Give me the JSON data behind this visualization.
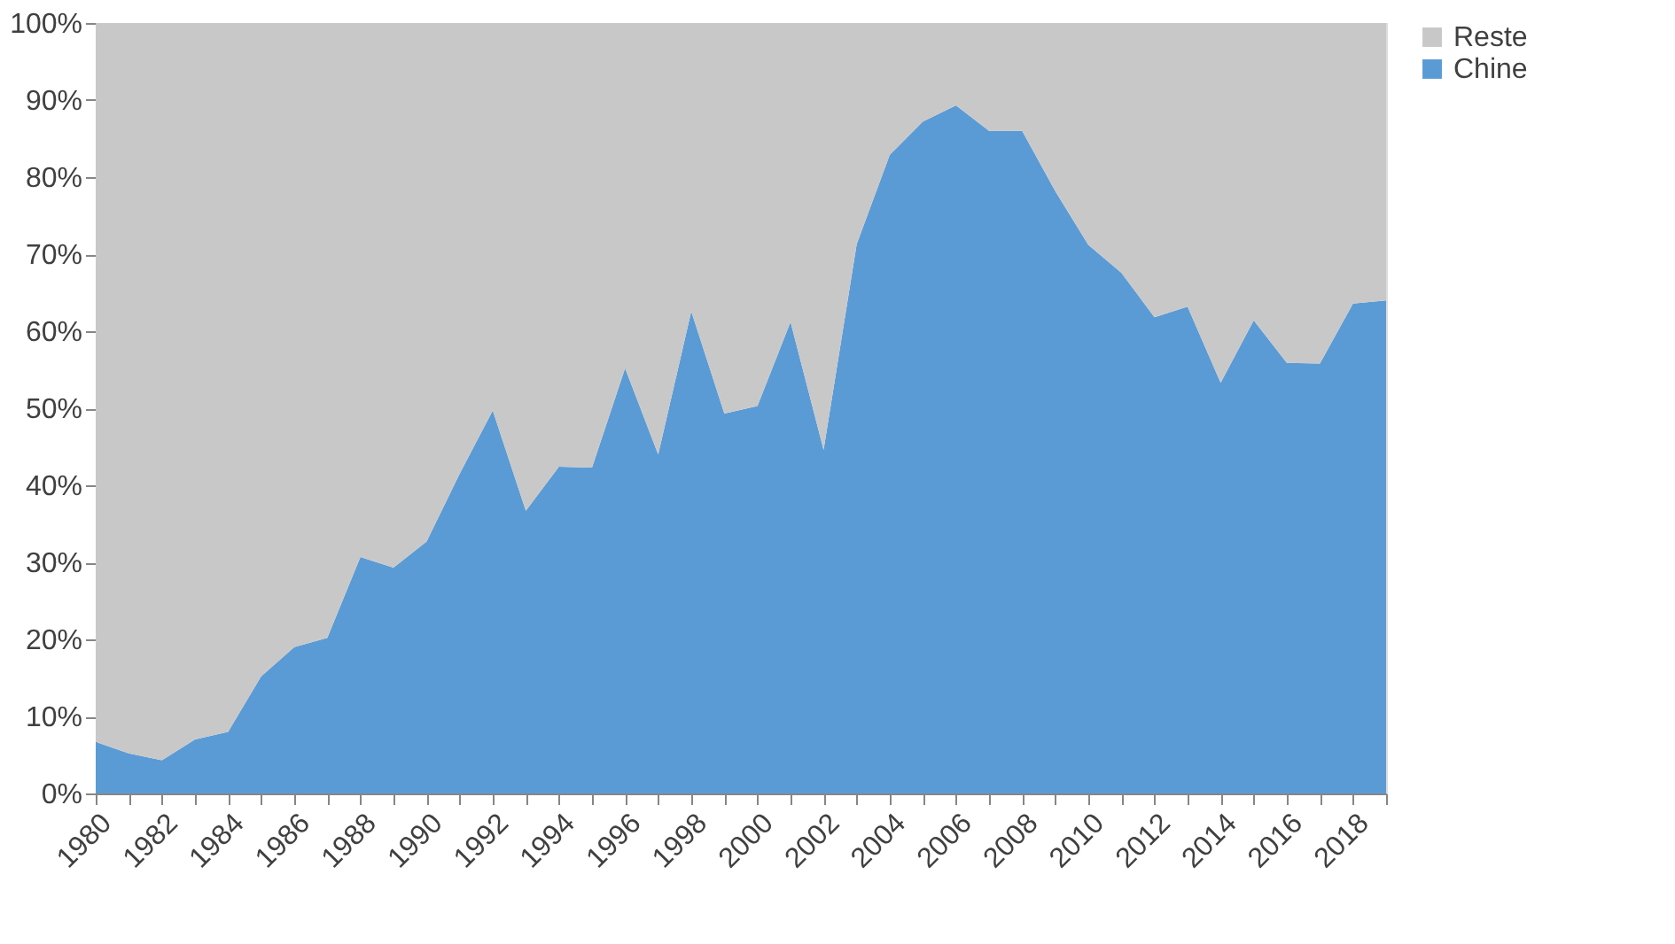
{
  "chart_data": {
    "type": "area",
    "stacked": true,
    "categories": [
      "1980",
      null,
      "1982",
      null,
      "1984",
      null,
      "1986",
      null,
      "1988",
      null,
      "1990",
      null,
      "1992",
      null,
      "1994",
      null,
      "1996",
      null,
      "1998",
      null,
      "2000",
      null,
      "2002",
      null,
      "2004",
      null,
      "2006",
      null,
      "2008",
      null,
      "2010",
      null,
      "2012",
      null,
      "2014",
      null,
      "2016",
      null,
      "2018",
      null
    ],
    "series": [
      {
        "name": "Chine",
        "color": "#5b9bd5",
        "values": [
          6.7,
          5.2,
          4.3,
          7,
          8,
          15.2,
          19,
          20.2,
          30.7,
          29.3,
          32.7,
          41.5,
          49.7,
          36.7,
          42.4,
          42.3,
          55.2,
          44,
          62.6,
          49.3,
          50.3,
          61.2,
          44.6,
          71.3,
          82.9,
          87.2,
          89.3,
          86,
          86,
          78.2,
          71.2,
          67.6,
          61.8,
          63.2,
          53.3,
          61.4,
          55.9,
          55.8,
          63.6,
          64
        ]
      },
      {
        "name": "Reste",
        "color": "#c8c8c8",
        "values": [
          93.3,
          94.8,
          95.7,
          93,
          92,
          84.8,
          81,
          79.8,
          69.3,
          70.7,
          67.3,
          58.5,
          50.3,
          63.3,
          57.6,
          57.7,
          44.8,
          56,
          37.4,
          50.7,
          49.7,
          38.8,
          55.4,
          28.7,
          17.1,
          12.8,
          10.7,
          14,
          14,
          21.8,
          28.8,
          32.4,
          38.2,
          36.8,
          46.7,
          38.6,
          44.1,
          44.2,
          36.4,
          36
        ]
      }
    ],
    "ylim": [
      0,
      100
    ],
    "yticks": [
      {
        "value": 0,
        "label": "0%"
      },
      {
        "value": 10,
        "label": "10%"
      },
      {
        "value": 20,
        "label": "20%"
      },
      {
        "value": 30,
        "label": "30%"
      },
      {
        "value": 40,
        "label": "40%"
      },
      {
        "value": 50,
        "label": "50%"
      },
      {
        "value": 60,
        "label": "60%"
      },
      {
        "value": 70,
        "label": "70%"
      },
      {
        "value": 80,
        "label": "80%"
      },
      {
        "value": 90,
        "label": "90%"
      },
      {
        "value": 100,
        "label": "100%"
      }
    ],
    "grid": false,
    "legend": "right"
  }
}
